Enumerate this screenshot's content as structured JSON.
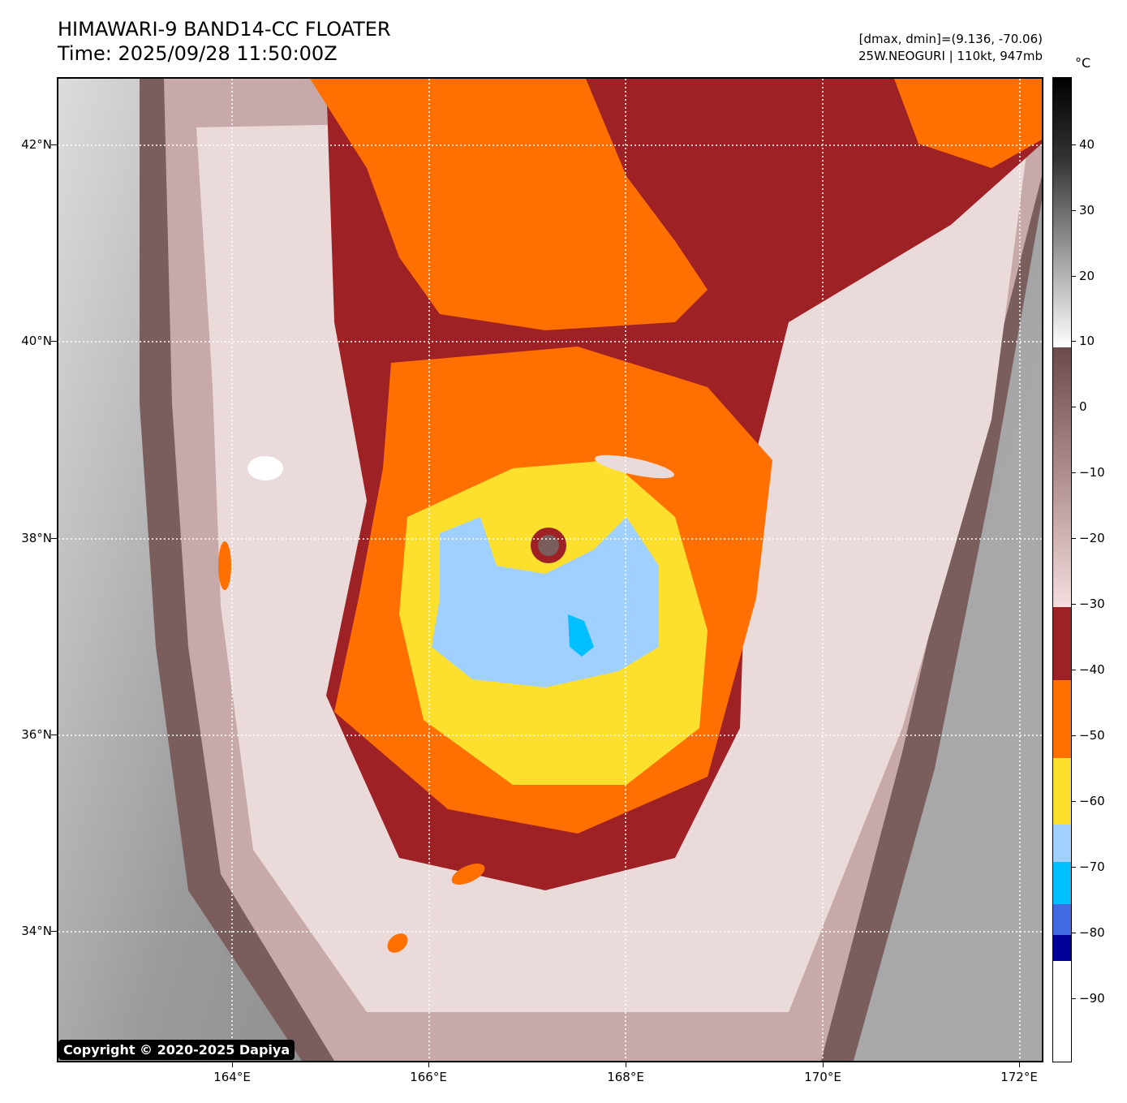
{
  "header": {
    "title_line1": "HIMAWARI-9 BAND14-CC FLOATER",
    "title_line2": "Time: 2025/09/28 11:50:00Z",
    "dmax_dmin": "[dmax, dmin]=(9.136, -70.06)",
    "storm": "25W.NEOGURI | 110kt, 947mb"
  },
  "map": {
    "lat_labels": [
      "42°N",
      "40°N",
      "38°N",
      "36°N",
      "34°N"
    ],
    "lon_labels": [
      "164°E",
      "166°E",
      "168°E",
      "170°E",
      "172°E"
    ]
  },
  "colorbar": {
    "unit": "°C",
    "labels": [
      "40",
      "30",
      "20",
      "10",
      "0",
      "−10",
      "−20",
      "−30",
      "−40",
      "−50",
      "−60",
      "−70",
      "−80",
      "−90"
    ]
  },
  "copyright": "Copyright © 2020-2025 Dapiya",
  "colors": {
    "cold_white": "#ffffff",
    "dark_blue": "#000099",
    "royal_blue": "#4169e1",
    "cyan": "#00bfff",
    "light_blue": "#9fd0ff",
    "yellow": "#fde02e",
    "orange": "#ff7000",
    "dark_red": "#9e2225",
    "pink": "#f2d5d5",
    "brown": "#6e4f4f"
  }
}
